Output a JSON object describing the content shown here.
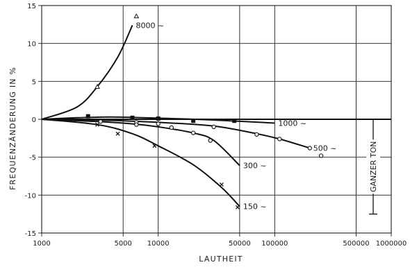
{
  "chart_data": {
    "type": "line",
    "xlabel": "LAUTHEIT",
    "ylabel": "FREQUENZÄNDERUNG IN %",
    "x_scale": "log",
    "xlim": [
      1000,
      1000000
    ],
    "ylim": [
      -15,
      15
    ],
    "x_ticks": [
      1000,
      5000,
      10000,
      50000,
      100000,
      500000,
      1000000
    ],
    "x_tick_labels": [
      "1000",
      "5000",
      "10000",
      "50000",
      "100000",
      "500000",
      "1000000"
    ],
    "y_ticks": [
      15,
      10,
      5,
      0,
      -5,
      -10,
      -15
    ],
    "y_tick_labels": [
      "15",
      "10",
      "5",
      "0",
      "-5",
      "-10",
      "-15"
    ],
    "grid": true,
    "series": [
      {
        "name": "8000 ~",
        "marker": "triangle",
        "values": [
          [
            1000,
            0
          ],
          [
            2000,
            1.6
          ],
          [
            3000,
            4.3
          ],
          [
            4500,
            8.2
          ],
          [
            6000,
            12.4
          ]
        ],
        "points": [
          [
            3000,
            4.3
          ],
          [
            6500,
            13.6
          ]
        ]
      },
      {
        "name": "1000 ~",
        "marker": "square",
        "values": [
          [
            1000,
            0
          ],
          [
            2000,
            0.2
          ],
          [
            4000,
            0.3
          ],
          [
            10000,
            0.15
          ],
          [
            30000,
            -0.1
          ],
          [
            100000,
            -0.5
          ]
        ],
        "points": [
          [
            2500,
            0.4
          ],
          [
            6000,
            0.2
          ],
          [
            10000,
            0.1
          ],
          [
            20000,
            -0.2
          ],
          [
            45000,
            -0.2
          ]
        ]
      },
      {
        "name": "500 ~",
        "marker": "circle",
        "values": [
          [
            1000,
            0
          ],
          [
            3000,
            -0.1
          ],
          [
            10000,
            -0.4
          ],
          [
            30000,
            -0.9
          ],
          [
            70000,
            -1.9
          ],
          [
            110000,
            -2.6
          ],
          [
            200000,
            -3.8
          ]
        ],
        "points": [
          [
            3200,
            -0.3
          ],
          [
            6500,
            -0.4
          ],
          [
            10000,
            -0.6
          ],
          [
            30000,
            -1
          ],
          [
            70000,
            -2
          ],
          [
            110000,
            -2.6
          ],
          [
            200000,
            -3.8
          ],
          [
            250000,
            -4.8
          ]
        ]
      },
      {
        "name": "300 ~",
        "marker": "circle",
        "values": [
          [
            1000,
            0
          ],
          [
            3000,
            -0.3
          ],
          [
            6000,
            -0.6
          ],
          [
            10000,
            -1
          ],
          [
            20000,
            -1.8
          ],
          [
            30000,
            -2.8
          ],
          [
            50000,
            -6.1
          ]
        ],
        "points": [
          [
            6500,
            -0.7
          ],
          [
            13000,
            -1.1
          ],
          [
            20000,
            -1.8
          ],
          [
            28000,
            -2.8
          ]
        ]
      },
      {
        "name": "150 ~",
        "marker": "x",
        "values": [
          [
            1000,
            0
          ],
          [
            3000,
            -0.7
          ],
          [
            6000,
            -1.9
          ],
          [
            10000,
            -3.5
          ],
          [
            20000,
            -6
          ],
          [
            35000,
            -9
          ],
          [
            50000,
            -11.5
          ]
        ],
        "points": [
          [
            3000,
            -0.7
          ],
          [
            4500,
            -1.9
          ],
          [
            9300,
            -3.5
          ],
          [
            35000,
            -8.6
          ],
          [
            48000,
            -11.6
          ]
        ]
      }
    ],
    "annotations": [
      {
        "text": "GANZER TON",
        "orientation": "vertical",
        "span_y": [
          0,
          -12.5
        ],
        "at_x": 700000
      }
    ]
  }
}
